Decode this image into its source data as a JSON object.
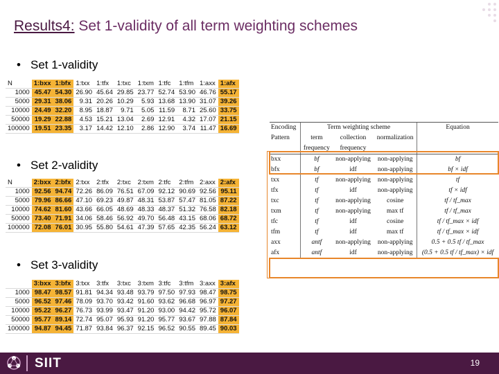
{
  "title": {
    "prefix": "Results4:",
    "rest": " Set 1-validity of all term weighting schemes"
  },
  "bullets": [
    "Set 1-validity",
    "Set 2-validity",
    "Set 3-validity"
  ],
  "table1": {
    "headers": [
      "N",
      "1:bxx",
      "1:bfx",
      "1:txx",
      "1:tfx",
      "1:txc",
      "1:txm",
      "1:tfc",
      "1:tfm",
      "1:axx",
      "1:afx"
    ],
    "rows": [
      [
        "1000",
        "45.47",
        "54.30",
        "26.90",
        "45.64",
        "29.85",
        "23.77",
        "52.74",
        "53.90",
        "46.76",
        "55.17"
      ],
      [
        "5000",
        "29.31",
        "38.06",
        "9.31",
        "20.26",
        "10.29",
        "5.93",
        "13.68",
        "13.90",
        "31.07",
        "39.26"
      ],
      [
        "10000",
        "24.49",
        "32.20",
        "8.95",
        "18.87",
        "9.71",
        "5.05",
        "11.59",
        "8.71",
        "25.60",
        "33.75"
      ],
      [
        "50000",
        "19.29",
        "22.88",
        "4.53",
        "15.21",
        "13.04",
        "2.69",
        "12.91",
        "4.32",
        "17.07",
        "21.15"
      ],
      [
        "100000",
        "19.51",
        "23.35",
        "3.17",
        "14.42",
        "12.10",
        "2.86",
        "12.90",
        "3.74",
        "11.47",
        "16.69"
      ]
    ]
  },
  "table2": {
    "headers": [
      "N",
      "2:bxx",
      "2:bfx",
      "2:txx",
      "2:tfx",
      "2:txc",
      "2:txm",
      "2:tfc",
      "2:tfm",
      "2:axx",
      "2:afx"
    ],
    "rows": [
      [
        "1000",
        "92.56",
        "94.74",
        "72.26",
        "86.09",
        "76.51",
        "67.09",
        "92.12",
        "90.69",
        "92.56",
        "95.11"
      ],
      [
        "5000",
        "79.96",
        "86.66",
        "47.10",
        "69.23",
        "49.87",
        "48.31",
        "53.87",
        "57.47",
        "81.05",
        "87.22"
      ],
      [
        "10000",
        "74.62",
        "81.60",
        "43.66",
        "66.05",
        "48.69",
        "48.33",
        "48.37",
        "51.32",
        "76.58",
        "82.18"
      ],
      [
        "50000",
        "73.40",
        "71.91",
        "34.06",
        "58.46",
        "56.92",
        "49.70",
        "56.48",
        "43.15",
        "68.06",
        "68.72"
      ],
      [
        "100000",
        "72.08",
        "76.01",
        "30.95",
        "55.80",
        "54.61",
        "47.39",
        "57.65",
        "42.35",
        "56.24",
        "63.12"
      ]
    ]
  },
  "table3": {
    "headers": [
      "",
      "3:bxx",
      "3:bfx",
      "3:txx",
      "3:tfx",
      "3:txc",
      "3:txm",
      "3:tfc",
      "3:tfm",
      "3:axx",
      "3:afx"
    ],
    "rows": [
      [
        "1000",
        "98.47",
        "98.57",
        "91.81",
        "94.34",
        "93.48",
        "93.79",
        "97.50",
        "97.93",
        "98.47",
        "98.75"
      ],
      [
        "5000",
        "96.52",
        "97.46",
        "78.09",
        "93.70",
        "93.42",
        "91.60",
        "93.62",
        "96.68",
        "96.97",
        "97.27"
      ],
      [
        "10000",
        "95.22",
        "96.27",
        "76.73",
        "93.99",
        "93.47",
        "91.20",
        "93.00",
        "94.42",
        "95.72",
        "96.07"
      ],
      [
        "50000",
        "95.77",
        "89.14",
        "72.74",
        "95.07",
        "95.93",
        "91.20",
        "95.77",
        "93.67",
        "97.88",
        "87.84"
      ],
      [
        "100000",
        "94.87",
        "94.45",
        "71.87",
        "93.84",
        "96.37",
        "92.15",
        "96.52",
        "90.55",
        "89.45",
        "90.03"
      ]
    ]
  },
  "scheme": {
    "col_headers": [
      "Encoding",
      "Term weighting scheme",
      "Equation"
    ],
    "sub_headers": [
      "Pattern",
      "term",
      "collection",
      "normalization"
    ],
    "sub_headers2": [
      "",
      "frequency",
      "frequency",
      ""
    ],
    "rows": [
      {
        "code": "bxx",
        "term": "bf",
        "coll": "non-applying",
        "norm": "non-applying",
        "eq": "bf"
      },
      {
        "code": "bfx",
        "term": "bf",
        "coll": "idf",
        "norm": "non-applying",
        "eq": "bf × idf"
      },
      {
        "code": "txx",
        "term": "tf",
        "coll": "non-applying",
        "norm": "non-applying",
        "eq": "tf"
      },
      {
        "code": "tfx",
        "term": "tf",
        "coll": "idf",
        "norm": "non-applying",
        "eq": "tf × idf"
      },
      {
        "code": "txc",
        "term": "tf",
        "coll": "non-applying",
        "norm": "cosine",
        "eq": "tf / tf_max"
      },
      {
        "code": "txm",
        "term": "tf",
        "coll": "non-applying",
        "norm": "max tf",
        "eq": "tf / tf_max"
      },
      {
        "code": "tfc",
        "term": "tf",
        "coll": "idf",
        "norm": "cosine",
        "eq": "tf / tf_max × idf"
      },
      {
        "code": "tfm",
        "term": "tf",
        "coll": "idf",
        "norm": "max tf",
        "eq": "tf / tf_max × idf"
      },
      {
        "code": "axx",
        "term": "antf",
        "coll": "non-applying",
        "norm": "non-applying",
        "eq": "0.5 + 0.5 tf / tf_max"
      },
      {
        "code": "afx",
        "term": "antf",
        "coll": "idf",
        "norm": "non-applying",
        "eq": "(0.5 + 0.5 tf / tf_max) × idf"
      }
    ]
  },
  "footer": {
    "brand": "SIIT",
    "page": "19"
  },
  "colors": {
    "accent": "#4a1942",
    "highlight": "#f5b335",
    "box": "#e8862a"
  }
}
